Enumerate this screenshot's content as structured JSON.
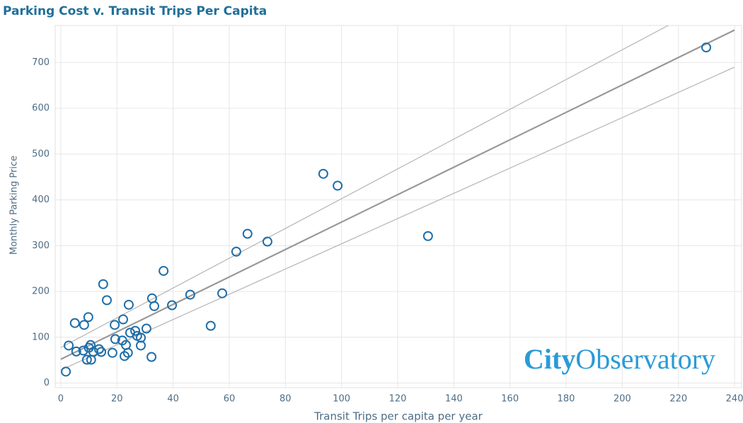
{
  "chart_data": {
    "type": "scatter",
    "title": "Parking Cost v. Transit Trips Per Capita",
    "x_label": "Transit Trips per capita per year",
    "y_label": "Monthly Parking Price",
    "x": [
      1.8,
      2.8,
      5,
      5.5,
      8,
      8.3,
      9.8,
      9.3,
      10,
      10.6,
      10.8,
      11.6,
      13.6,
      14.4,
      15.1,
      16.4,
      18.4,
      19.2,
      19.4,
      22.2,
      21.9,
      22.7,
      23.2,
      23.9,
      24.2,
      24.7,
      26.5,
      27.2,
      28.5,
      28.5,
      30.5,
      32.3,
      32.5,
      33.3,
      36.6,
      39.6,
      46.1,
      53.4,
      57.5,
      62.5,
      66.5,
      73.6,
      93.5,
      98.6,
      130.8,
      229.9
    ],
    "series": [
      {
        "name": null,
        "color": "#1f6ea8",
        "values": [
          25,
          82,
          131,
          69,
          71,
          127,
          144,
          51,
          77,
          83,
          51,
          68,
          74,
          68,
          216,
          181,
          66,
          127,
          96,
          139,
          93,
          59,
          83,
          66,
          171,
          110,
          114,
          103,
          99,
          82,
          119,
          57,
          185,
          168,
          245,
          170,
          193,
          125,
          196,
          287,
          326,
          309,
          457,
          431,
          321,
          733
        ]
      }
    ],
    "trend_lines": [
      {
        "x": [
          0,
          240
        ],
        "values": [
          52,
          771
        ],
        "color": "#999999"
      },
      {
        "x": [
          0,
          240
        ],
        "values": [
          77.5,
          858
        ],
        "color": "#b4b4b4"
      },
      {
        "x": [
          0,
          240
        ],
        "values": [
          28.5,
          690
        ],
        "color": "#b4b4b4"
      }
    ],
    "xlim": [
      -2,
      242.5
    ],
    "ylim": [
      -10,
      781
    ],
    "xticks": [
      0,
      20,
      40,
      60,
      80,
      100,
      120,
      140,
      160,
      180,
      200,
      220,
      240
    ],
    "yticks": [
      0,
      100,
      200,
      300,
      400,
      500,
      600,
      700
    ],
    "grid": true
  },
  "logo": {
    "bold": "City",
    "light": "Observatory"
  }
}
